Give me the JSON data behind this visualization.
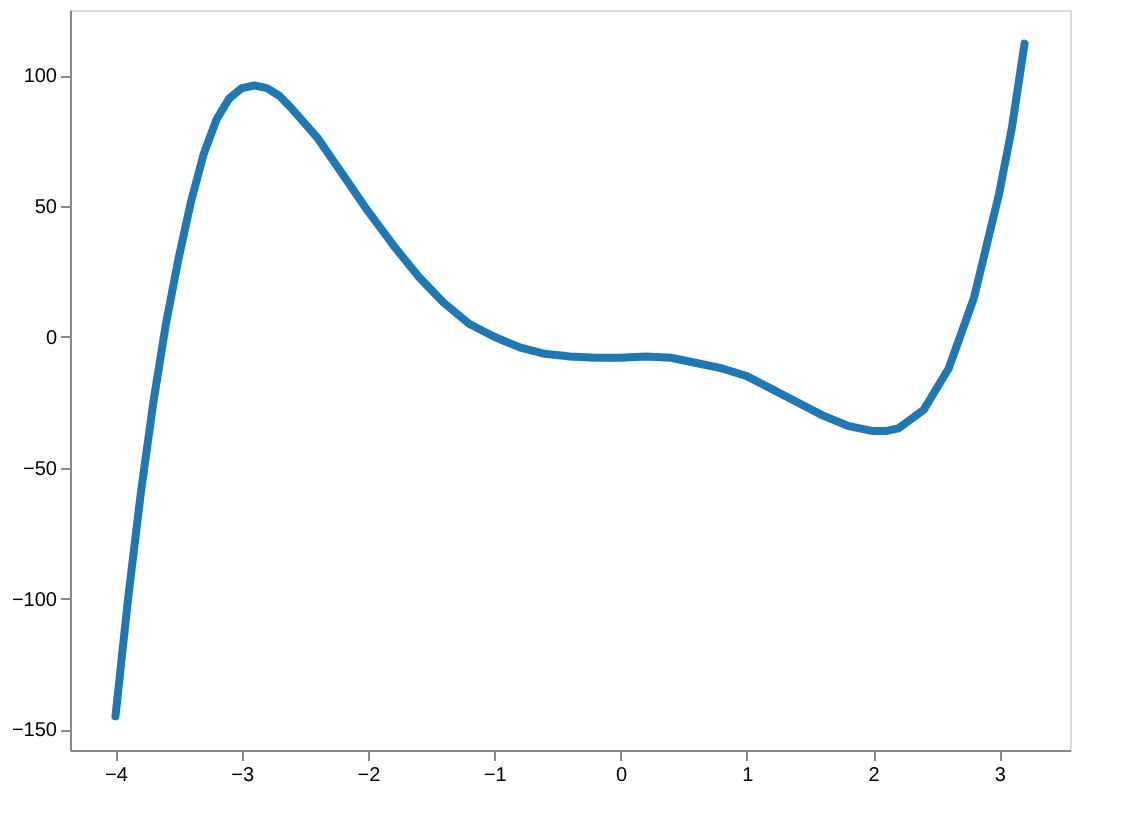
{
  "chart_data": {
    "type": "line",
    "x": [
      -4,
      -3.9,
      -3.8,
      -3.7,
      -3.6,
      -3.5,
      -3.4,
      -3.3,
      -3.2,
      -3.1,
      -3.0,
      -2.9,
      -2.8,
      -2.7,
      -2.6,
      -2.4,
      -2.2,
      -2.0,
      -1.8,
      -1.6,
      -1.4,
      -1.2,
      -1.0,
      -0.8,
      -0.6,
      -0.4,
      -0.2,
      0,
      0.2,
      0.4,
      0.6,
      0.8,
      1.0,
      1.2,
      1.4,
      1.6,
      1.8,
      2.0,
      2.1,
      2.2,
      2.4,
      2.6,
      2.8,
      3.0,
      3.1,
      3.2
    ],
    "series": [
      {
        "color": "#1f77b4",
        "values": [
          -145,
          -100,
          -60,
          -25,
          5,
          30,
          52,
          70,
          83,
          91,
          95,
          96,
          95,
          92,
          87,
          76,
          62,
          48,
          35,
          23,
          13,
          5,
          0,
          -4,
          -6.5,
          -7.5,
          -8,
          -8,
          -7.5,
          -8,
          -10,
          -12,
          -15,
          -20,
          -25,
          -30,
          -34,
          -36,
          -36,
          -35,
          -28,
          -12,
          15,
          55,
          80,
          112
        ]
      }
    ],
    "xlim": [
      -4.36,
      3.56
    ],
    "ylim": [
      -157.85,
      124.85
    ],
    "xticks": [
      -4,
      -3,
      -2,
      -1,
      0,
      1,
      2,
      3
    ],
    "yticks": [
      -150,
      -100,
      -50,
      0,
      50,
      100
    ],
    "grid": false,
    "line_style": "solid"
  }
}
